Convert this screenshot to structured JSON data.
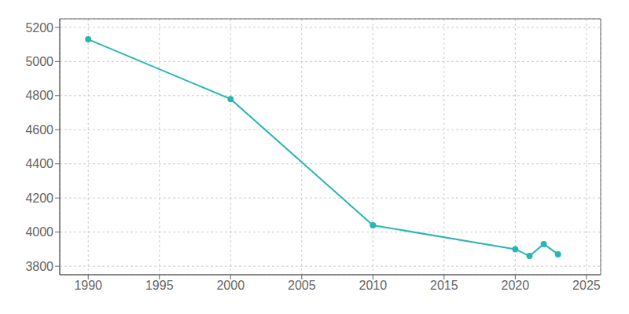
{
  "chart_data": {
    "type": "line",
    "x": [
      1990,
      2000,
      2010,
      2020,
      2021,
      2022,
      2023
    ],
    "values": [
      5130,
      4780,
      4040,
      3900,
      3860,
      3930,
      3870
    ],
    "color": "#2ab5b5",
    "marker": "circle",
    "xlim": [
      1988,
      2026
    ],
    "xticks": [
      1990,
      1995,
      2000,
      2005,
      2010,
      2015,
      2020,
      2025
    ],
    "ylim": [
      3750,
      5250
    ],
    "yticks": [
      3800,
      4000,
      4200,
      4400,
      4600,
      4800,
      5000,
      5200
    ],
    "grid": true
  }
}
